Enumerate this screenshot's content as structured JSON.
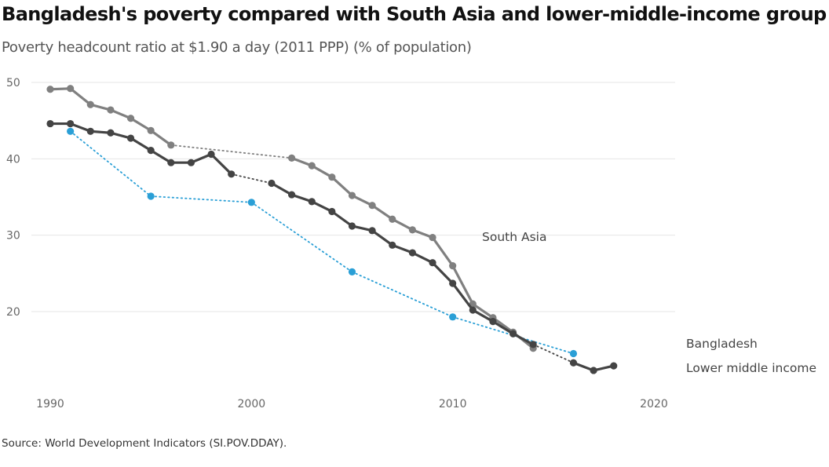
{
  "title": "Bangladesh's poverty compared with South Asia and lower-middle-income group",
  "subtitle": "Poverty headcount ratio at $1.90 a day (2011 PPP) (% of population)",
  "source": "Source: World Development Indicators (SI.POV.DDAY).",
  "chart_data": {
    "type": "line",
    "x_ticks": [
      1990,
      2000,
      2010,
      2020
    ],
    "y_ticks": [
      20,
      30,
      40,
      50
    ],
    "xlim": [
      1989.5,
      2020.5
    ],
    "ylim": [
      10.5,
      51
    ],
    "grid": true,
    "legend": "none (labels at line ends)",
    "series": [
      {
        "name": "South Asia",
        "color": "#808080",
        "points": [
          [
            1990,
            49.1
          ],
          [
            1991,
            49.2
          ],
          [
            1992,
            47.1
          ],
          [
            1993,
            46.4
          ],
          [
            1994,
            45.3
          ],
          [
            1995,
            43.7
          ],
          [
            1996,
            41.8
          ],
          [
            2002,
            40.1
          ],
          [
            2003,
            39.1
          ],
          [
            2004,
            37.6
          ],
          [
            2005,
            35.2
          ],
          [
            2006,
            33.9
          ],
          [
            2007,
            32.1
          ],
          [
            2008,
            30.7
          ],
          [
            2009,
            29.7
          ],
          [
            2010,
            26.0
          ],
          [
            2011,
            21.0
          ],
          [
            2012,
            19.2
          ],
          [
            2013,
            17.3
          ],
          [
            2014,
            15.2
          ]
        ],
        "gaps_after": [
          1996
        ]
      },
      {
        "name": "Bangladesh",
        "color": "#444444",
        "points": [
          [
            1990,
            44.6
          ],
          [
            1991,
            44.6
          ],
          [
            1992,
            43.6
          ],
          [
            1993,
            43.4
          ],
          [
            1994,
            42.7
          ],
          [
            1995,
            41.1
          ],
          [
            1996,
            39.5
          ],
          [
            1997,
            39.5
          ],
          [
            1998,
            40.6
          ],
          [
            1999,
            38.0
          ],
          [
            2001,
            36.8
          ],
          [
            2002,
            35.3
          ],
          [
            2003,
            34.4
          ],
          [
            2004,
            33.1
          ],
          [
            2005,
            31.2
          ],
          [
            2006,
            30.6
          ],
          [
            2007,
            28.7
          ],
          [
            2008,
            27.7
          ],
          [
            2009,
            26.4
          ],
          [
            2010,
            23.7
          ],
          [
            2011,
            20.2
          ],
          [
            2012,
            18.7
          ],
          [
            2013,
            17.1
          ],
          [
            2014,
            15.7
          ],
          [
            2016,
            13.3
          ],
          [
            2017,
            12.3
          ],
          [
            2018,
            12.9
          ]
        ],
        "gaps_after": [
          1999,
          2014
        ]
      },
      {
        "name": "Lower middle income",
        "color": "#2a9fd6",
        "points": [
          [
            1991,
            43.6
          ],
          [
            1995,
            35.1
          ],
          [
            2000,
            34.3
          ],
          [
            2005,
            25.2
          ],
          [
            2010,
            19.3
          ],
          [
            2016,
            14.5
          ]
        ],
        "gaps_after": [
          1991,
          1995,
          2000,
          2005,
          2010
        ]
      }
    ]
  }
}
